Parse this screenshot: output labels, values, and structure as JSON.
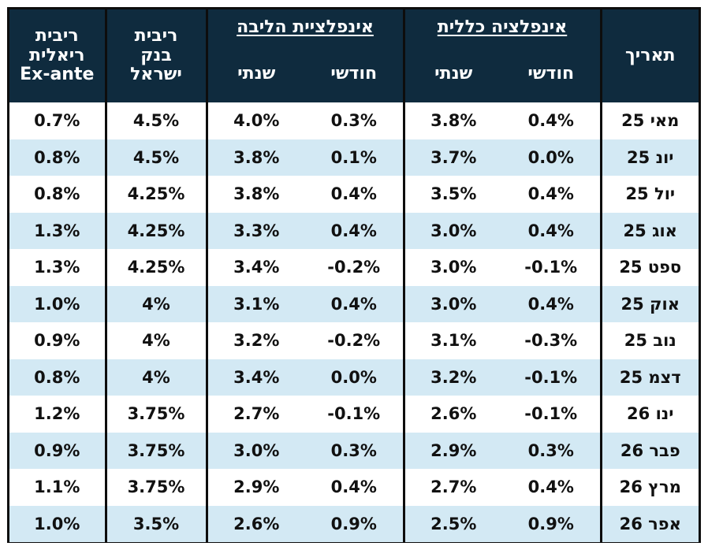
{
  "header": {
    "real_rate": "ריבית\nריאלית\nEx-ante",
    "boi_rate": "ריבית\nבנק\nישראל",
    "core_group": "אינפלציית הליבה",
    "headline_group": "אינפלציה כללית",
    "annual": "שנתי",
    "monthly": "חודשי",
    "date": "תאריך"
  },
  "rows": [
    {
      "date": "מאי 25",
      "headline_monthly": "0.4%",
      "headline_annual": "3.8%",
      "core_monthly": "0.3%",
      "core_annual": "4.0%",
      "boi_rate": "4.5%",
      "real_rate": "0.7%"
    },
    {
      "date": "יונ 25",
      "headline_monthly": "0.0%",
      "headline_annual": "3.7%",
      "core_monthly": "0.1%",
      "core_annual": "3.8%",
      "boi_rate": "4.5%",
      "real_rate": "0.8%"
    },
    {
      "date": "יול 25",
      "headline_monthly": "0.4%",
      "headline_annual": "3.5%",
      "core_monthly": "0.4%",
      "core_annual": "3.8%",
      "boi_rate": "4.25%",
      "real_rate": "0.8%"
    },
    {
      "date": "אוג 25",
      "headline_monthly": "0.4%",
      "headline_annual": "3.0%",
      "core_monthly": "0.4%",
      "core_annual": "3.3%",
      "boi_rate": "4.25%",
      "real_rate": "1.3%"
    },
    {
      "date": "ספט 25",
      "headline_monthly": "-0.1%",
      "headline_annual": "3.0%",
      "core_monthly": "-0.2%",
      "core_annual": "3.4%",
      "boi_rate": "4.25%",
      "real_rate": "1.3%"
    },
    {
      "date": "אוק 25",
      "headline_monthly": "0.4%",
      "headline_annual": "3.0%",
      "core_monthly": "0.4%",
      "core_annual": "3.1%",
      "boi_rate": "4%",
      "real_rate": "1.0%"
    },
    {
      "date": "נוב 25",
      "headline_monthly": "-0.3%",
      "headline_annual": "3.1%",
      "core_monthly": "-0.2%",
      "core_annual": "3.2%",
      "boi_rate": "4%",
      "real_rate": "0.9%"
    },
    {
      "date": "דצמ 25",
      "headline_monthly": "-0.1%",
      "headline_annual": "3.2%",
      "core_monthly": "0.0%",
      "core_annual": "3.4%",
      "boi_rate": "4%",
      "real_rate": "0.8%"
    },
    {
      "date": "ינו 26",
      "headline_monthly": "-0.1%",
      "headline_annual": "2.6%",
      "core_monthly": "-0.1%",
      "core_annual": "2.7%",
      "boi_rate": "3.75%",
      "real_rate": "1.2%"
    },
    {
      "date": "פבר 26",
      "headline_monthly": "0.3%",
      "headline_annual": "2.9%",
      "core_monthly": "0.3%",
      "core_annual": "3.0%",
      "boi_rate": "3.75%",
      "real_rate": "0.9%"
    },
    {
      "date": "מרץ 26",
      "headline_monthly": "0.4%",
      "headline_annual": "2.7%",
      "core_monthly": "0.4%",
      "core_annual": "2.9%",
      "boi_rate": "3.75%",
      "real_rate": "1.1%"
    },
    {
      "date": "אפר 26",
      "headline_monthly": "0.9%",
      "headline_annual": "2.5%",
      "core_monthly": "0.9%",
      "core_annual": "2.6%",
      "boi_rate": "3.5%",
      "real_rate": "1.0%"
    }
  ]
}
